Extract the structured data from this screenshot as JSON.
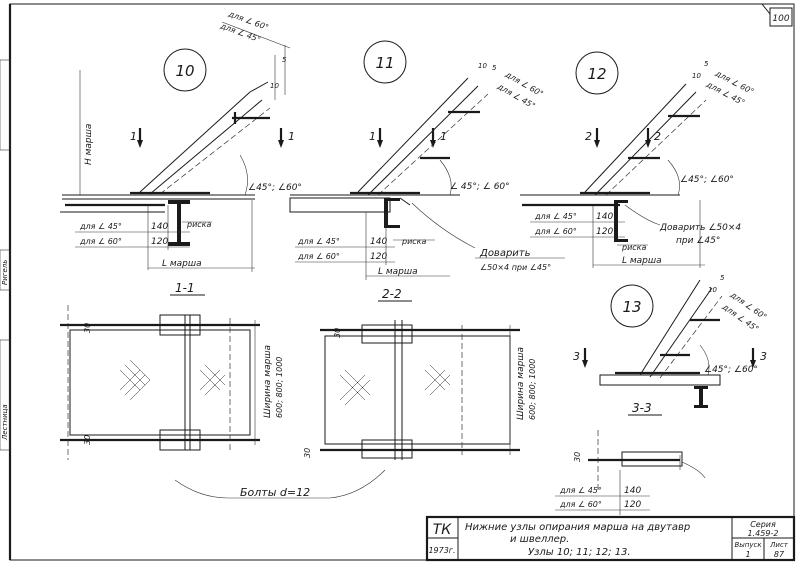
{
  "sheet_number_corner": "100",
  "left_margin_labels": [
    "Ригель",
    "Лестница"
  ],
  "nodes": [
    {
      "id": "10",
      "angle_top": "для ∠ 60°",
      "angle_bottom": "для ∠ 45°",
      "dim_small": "5",
      "dim_big": "10",
      "vertical_label": "H марша",
      "section_mark": "1",
      "angle_label": "∠45°; ∠60°",
      "rows": [
        {
          "label": "для ∠ 45°",
          "value": "140"
        },
        {
          "label": "для ∠ 60°",
          "value": "120"
        }
      ],
      "tick_label": "риска",
      "length_label": "L марша"
    },
    {
      "id": "11",
      "angle_top": "для ∠ 60°",
      "angle_bottom": "для ∠ 45°",
      "dim_small": "5",
      "dim_big": "10",
      "section_mark": "1",
      "angle_label": "∠ 45°; ∠ 60°",
      "rows": [
        {
          "label": "для ∠ 45°",
          "value": "140"
        },
        {
          "label": "для ∠ 60°",
          "value": "120"
        }
      ],
      "tick_label": "риска",
      "length_label": "L марша",
      "note": [
        "Доварить",
        "∠50×4 при ∠45°"
      ]
    },
    {
      "id": "12",
      "angle_top": "для ∠ 60°",
      "angle_bottom": "для ∠ 45°",
      "dim_small": "5",
      "dim_big": "10",
      "section_mark": "2",
      "angle_label": "∠45°; ∠60°",
      "rows": [
        {
          "label": "для ∠ 45°",
          "value": "140"
        },
        {
          "label": "для ∠ 60°",
          "value": "120"
        }
      ],
      "tick_label": "риска",
      "length_label": "L марша",
      "note": [
        "Доварить ∠50×4",
        "при ∠45°"
      ]
    },
    {
      "id": "13",
      "angle_top": "для ∠ 60°",
      "angle_bottom": "для ∠ 45°",
      "dim_small": "5",
      "dim_big": "10",
      "section_mark": "3",
      "angle_label": "∠45°; ∠60°"
    }
  ],
  "sections": [
    {
      "id": "1-1",
      "dim": "30",
      "width_label": "Ширина марша",
      "width_values": "600; 800; 1000"
    },
    {
      "id": "2-2",
      "dim": "30",
      "width_label": "Ширина марша",
      "width_values": "600; 800; 1000"
    },
    {
      "id": "3-3",
      "dim": "30",
      "rows": [
        {
          "label": "для ∠ 45°",
          "value": "140"
        },
        {
          "label": "для ∠ 60°",
          "value": "120"
        }
      ]
    }
  ],
  "bolts_label": "Болты d=12",
  "title_block": {
    "org": "ТК",
    "year": "1973г.",
    "title_line1": "Нижние узлы опирания марша на двутавр",
    "title_line2": "и швеллер.",
    "title_line3": "Узлы 10; 11; 12; 13.",
    "series_label": "Серия",
    "series_value": "1.459-2",
    "issue_label": "Выпуск",
    "sheet_label": "Лист",
    "issue_value": "1",
    "sheet_value": "87"
  }
}
